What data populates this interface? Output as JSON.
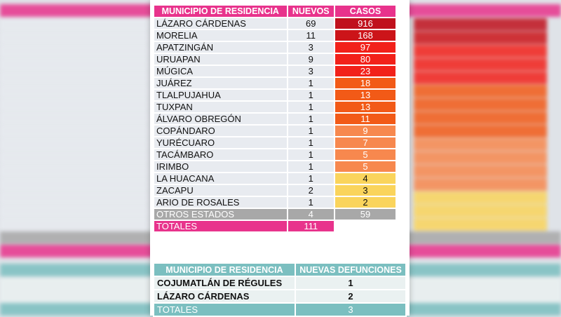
{
  "casos_table": {
    "headers": [
      "MUNICIPIO DE RESIDENCIA",
      "NUEVOS",
      "CASOS"
    ],
    "rows": [
      {
        "municipio": "LÁZARO CÁRDENAS",
        "nuevos": "69",
        "casos": "916",
        "color": "#c0111d"
      },
      {
        "municipio": "MORELIA",
        "nuevos": "11",
        "casos": "168",
        "color": "#cc1419"
      },
      {
        "municipio": "APATZINGÁN",
        "nuevos": "3",
        "casos": "97",
        "color": "#f2211a"
      },
      {
        "municipio": "URUAPAN",
        "nuevos": "9",
        "casos": "80",
        "color": "#f2211a"
      },
      {
        "municipio": "MÚGICA",
        "nuevos": "3",
        "casos": "23",
        "color": "#f2211a"
      },
      {
        "municipio": "JUÁREZ",
        "nuevos": "1",
        "casos": "18",
        "color": "#f25a17"
      },
      {
        "municipio": "TLALPUJAHUA",
        "nuevos": "1",
        "casos": "13",
        "color": "#f25a17"
      },
      {
        "municipio": "TUXPAN",
        "nuevos": "1",
        "casos": "13",
        "color": "#f25a17"
      },
      {
        "municipio": "ÁLVARO OBREGÓN",
        "nuevos": "1",
        "casos": "11",
        "color": "#f25a17"
      },
      {
        "municipio": "COPÁNDARO",
        "nuevos": "1",
        "casos": "9",
        "color": "#f7884e"
      },
      {
        "municipio": "YURÉCUARO",
        "nuevos": "1",
        "casos": "7",
        "color": "#f7884e"
      },
      {
        "municipio": "TACÁMBARO",
        "nuevos": "1",
        "casos": "5",
        "color": "#f7884e"
      },
      {
        "municipio": "IRIMBO",
        "nuevos": "1",
        "casos": "5",
        "color": "#f7884e"
      },
      {
        "municipio": "LA HUACANA",
        "nuevos": "1",
        "casos": "4",
        "color": "#fad45c"
      },
      {
        "municipio": "ZACAPU",
        "nuevos": "2",
        "casos": "3",
        "color": "#fad45c"
      },
      {
        "municipio": "ARIO DE ROSALES",
        "nuevos": "1",
        "casos": "2",
        "color": "#fad45c"
      }
    ],
    "otros": {
      "label": "OTROS ESTADOS",
      "nuevos": "4",
      "casos": "59"
    },
    "totales": {
      "label": "TOTALES",
      "nuevos": "111"
    }
  },
  "defunciones_table": {
    "headers": [
      "MUNICIPIO DE RESIDENCIA",
      "NUEVAS DEFUNCIONES"
    ],
    "rows": [
      {
        "municipio": "COJUMATLÁN DE RÉGULES",
        "valor": "1"
      },
      {
        "municipio": "LÁZARO CÁRDENAS",
        "valor": "2"
      }
    ],
    "totales": {
      "label": "TOTALES",
      "valor": "3"
    }
  }
}
